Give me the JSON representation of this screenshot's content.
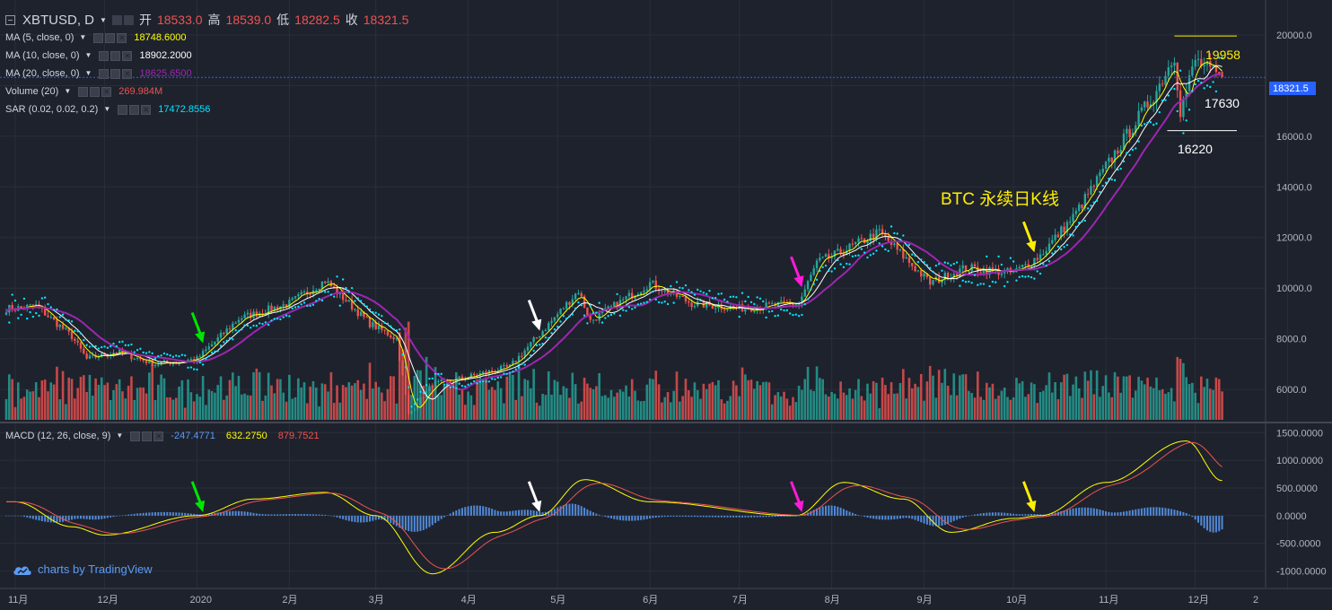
{
  "header": {
    "symbol": "XBTUSD, D",
    "open_label": "开",
    "open": "18533.0",
    "high_label": "高",
    "high": "18539.0",
    "low_label": "低",
    "low": "18282.5",
    "close_label": "收",
    "close": "18321.5"
  },
  "indicators": [
    {
      "name": "MA (5, close, 0)",
      "value": "18748.6000",
      "color": "#ffff00"
    },
    {
      "name": "MA (10, close, 0)",
      "value": "18902.2000",
      "color": "#ffffff"
    },
    {
      "name": "MA (20, close, 0)",
      "value": "18625.6500",
      "color": "#9c27b0"
    },
    {
      "name": "Volume (20)",
      "value": "269.984M",
      "color": "#ef5350"
    },
    {
      "name": "SAR (0.02, 0.02, 0.2)",
      "value": "17472.8556",
      "color": "#00e5ff"
    }
  ],
  "macd_legend": {
    "name": "MACD (12, 26, close, 9)",
    "hist": "-247.4771",
    "hist_color": "#5b9cf6",
    "macd": "632.2750",
    "macd_color": "#ffff00",
    "signal": "879.7521",
    "signal_color": "#ef5350"
  },
  "brand": "charts by TradingView",
  "annotations": {
    "main_title": "BTC  永续日K线",
    "high": "19958",
    "mid": "17630",
    "low": "16220",
    "current_price_tag": "18321.5"
  },
  "colors": {
    "up": "#26a69a",
    "down": "#ef5350",
    "background": "#1e222d",
    "arrow_green": "#00e600",
    "arrow_white": "#ffffff",
    "arrow_magenta": "#ff1ad9",
    "arrow_yellow": "#ffee00"
  },
  "chart_data": {
    "type": "candlestick",
    "price_axis": {
      "ticks": [
        "20000.0",
        "18000.0",
        "16000.0",
        "14000.0",
        "12000.0",
        "10000.0",
        "8000.0",
        "6000.0"
      ],
      "range": [
        4800,
        21200
      ]
    },
    "macd_axis": {
      "ticks": [
        "1500.0000",
        "1000.0000",
        "500.0000",
        "0.0000",
        "-500.0000",
        "-1000.0000"
      ],
      "range": [
        -1250,
        1650
      ]
    },
    "x_ticks": [
      "11月",
      "12月",
      "2020",
      "2月",
      "3月",
      "4月",
      "5月",
      "6月",
      "7月",
      "8月",
      "9月",
      "10月",
      "11月",
      "12月",
      "2"
    ],
    "price_anchors": [
      {
        "date": "2019-11-01",
        "close": 9200
      },
      {
        "date": "2019-11-08",
        "close": 9300
      },
      {
        "date": "2019-11-20",
        "close": 8100
      },
      {
        "date": "2019-11-25",
        "close": 7200
      },
      {
        "date": "2019-12-05",
        "close": 7500
      },
      {
        "date": "2019-12-18",
        "close": 7000
      },
      {
        "date": "2020-01-01",
        "close": 7200
      },
      {
        "date": "2020-01-15",
        "close": 8800
      },
      {
        "date": "2020-02-01",
        "close": 9400
      },
      {
        "date": "2020-02-13",
        "close": 10300
      },
      {
        "date": "2020-02-28",
        "close": 8600
      },
      {
        "date": "2020-03-08",
        "close": 8000
      },
      {
        "date": "2020-03-12",
        "close": 5000
      },
      {
        "date": "2020-03-20",
        "close": 6200
      },
      {
        "date": "2020-04-01",
        "close": 6500
      },
      {
        "date": "2020-04-15",
        "close": 6900
      },
      {
        "date": "2020-04-29",
        "close": 8700
      },
      {
        "date": "2020-05-08",
        "close": 9900
      },
      {
        "date": "2020-05-12",
        "close": 8700
      },
      {
        "date": "2020-06-01",
        "close": 10200
      },
      {
        "date": "2020-06-15",
        "close": 9400
      },
      {
        "date": "2020-07-01",
        "close": 9200
      },
      {
        "date": "2020-07-21",
        "close": 9400
      },
      {
        "date": "2020-07-27",
        "close": 11000
      },
      {
        "date": "2020-08-02",
        "close": 11300
      },
      {
        "date": "2020-08-17",
        "close": 12200
      },
      {
        "date": "2020-09-03",
        "close": 10200
      },
      {
        "date": "2020-09-15",
        "close": 10800
      },
      {
        "date": "2020-10-01",
        "close": 10600
      },
      {
        "date": "2020-10-10",
        "close": 11300
      },
      {
        "date": "2020-10-21",
        "close": 12800
      },
      {
        "date": "2020-11-05",
        "close": 15500
      },
      {
        "date": "2020-11-18",
        "close": 17800
      },
      {
        "date": "2020-11-24",
        "close": 19200
      },
      {
        "date": "2020-11-26",
        "close": 17000
      },
      {
        "date": "2020-12-01",
        "close": 19000
      },
      {
        "date": "2020-12-08",
        "close": 18400
      },
      {
        "date": "2020-12-10",
        "close": 18321.5
      }
    ],
    "macd_anchors": [
      {
        "date": "2019-11-01",
        "macd": 250
      },
      {
        "date": "2019-11-20",
        "macd": -200
      },
      {
        "date": "2019-12-01",
        "macd": -350
      },
      {
        "date": "2020-01-01",
        "macd": 0
      },
      {
        "date": "2020-01-20",
        "macd": 300
      },
      {
        "date": "2020-02-13",
        "macd": 420
      },
      {
        "date": "2020-03-01",
        "macd": 0
      },
      {
        "date": "2020-03-20",
        "macd": -1050
      },
      {
        "date": "2020-04-10",
        "macd": -300
      },
      {
        "date": "2020-04-25",
        "macd": 0
      },
      {
        "date": "2020-05-10",
        "macd": 650
      },
      {
        "date": "2020-06-01",
        "macd": 250
      },
      {
        "date": "2020-07-20",
        "macd": 0
      },
      {
        "date": "2020-08-05",
        "macd": 600
      },
      {
        "date": "2020-08-25",
        "macd": 300
      },
      {
        "date": "2020-09-10",
        "macd": -300
      },
      {
        "date": "2020-10-01",
        "macd": -50
      },
      {
        "date": "2020-10-10",
        "macd": 0
      },
      {
        "date": "2020-11-01",
        "macd": 600
      },
      {
        "date": "2020-11-28",
        "macd": 1350
      },
      {
        "date": "2020-12-10",
        "macd": 632.275
      }
    ],
    "last_values": {
      "ma5": 18748.6,
      "ma10": 18902.2,
      "ma20": 18625.65,
      "sar": 17472.8556,
      "volume": "269.984M",
      "macd": 632.275,
      "signal": 879.7521,
      "hist": -247.4771
    },
    "annotated_levels": [
      19958,
      17630,
      16220
    ],
    "signal_arrows": [
      {
        "date": "2020-01-03",
        "color": "green"
      },
      {
        "date": "2020-04-25",
        "color": "white"
      },
      {
        "date": "2020-07-22",
        "color": "magenta"
      },
      {
        "date": "2020-10-08",
        "color": "yellow"
      }
    ]
  }
}
